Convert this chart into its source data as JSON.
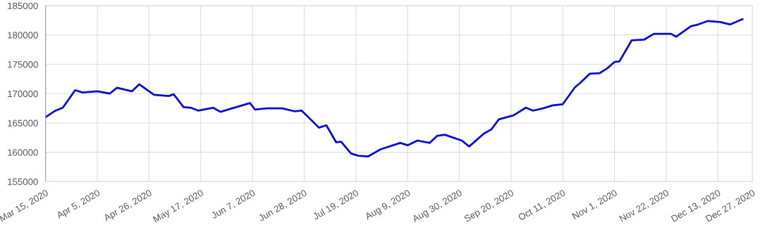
{
  "chart_data": {
    "type": "line",
    "grid": true,
    "marker": "none",
    "line_style": "solid",
    "xlim": [
      "2020-03-15",
      "2020-12-27"
    ],
    "xticks": [
      {
        "value": "2020-03-15",
        "label": "Mar 15, 2020"
      },
      {
        "value": "2020-04-05",
        "label": "Apr 5, 2020"
      },
      {
        "value": "2020-04-26",
        "label": "Apr 26, 2020"
      },
      {
        "value": "2020-05-17",
        "label": "May 17, 2020"
      },
      {
        "value": "2020-06-07",
        "label": "Jun 7, 2020"
      },
      {
        "value": "2020-06-28",
        "label": "Jun 28, 2020"
      },
      {
        "value": "2020-07-19",
        "label": "Jul 19, 2020"
      },
      {
        "value": "2020-08-09",
        "label": "Aug 9, 2020"
      },
      {
        "value": "2020-08-30",
        "label": "Aug 30, 2020"
      },
      {
        "value": "2020-09-20",
        "label": "Sep 20, 2020"
      },
      {
        "value": "2020-10-11",
        "label": "Oct 11, 2020"
      },
      {
        "value": "2020-11-01",
        "label": "Nov 1, 2020"
      },
      {
        "value": "2020-11-22",
        "label": "Nov 22, 2020"
      },
      {
        "value": "2020-12-13",
        "label": "Dec 13, 2020"
      },
      {
        "value": "2020-12-27",
        "label": "Dec 27, 2020"
      }
    ],
    "ylim": [
      155000,
      185000
    ],
    "yticks": [
      155000,
      160000,
      165000,
      170000,
      175000,
      180000,
      185000
    ],
    "x": [
      "2020-03-15",
      "2020-03-19",
      "2020-03-22",
      "2020-03-27",
      "2020-03-30",
      "2020-04-05",
      "2020-04-10",
      "2020-04-13",
      "2020-04-19",
      "2020-04-22",
      "2020-04-28",
      "2020-05-04",
      "2020-05-06",
      "2020-05-10",
      "2020-05-13",
      "2020-05-16",
      "2020-05-22",
      "2020-05-25",
      "2020-06-06",
      "2020-06-08",
      "2020-06-13",
      "2020-06-19",
      "2020-06-24",
      "2020-06-27",
      "2020-07-04",
      "2020-07-07",
      "2020-07-11",
      "2020-07-13",
      "2020-07-17",
      "2020-07-20",
      "2020-07-24",
      "2020-07-29",
      "2020-08-06",
      "2020-08-09",
      "2020-08-13",
      "2020-08-18",
      "2020-08-21",
      "2020-08-24",
      "2020-08-31",
      "2020-09-03",
      "2020-09-09",
      "2020-09-12",
      "2020-09-15",
      "2020-09-21",
      "2020-09-26",
      "2020-09-29",
      "2020-10-03",
      "2020-10-07",
      "2020-10-11",
      "2020-10-16",
      "2020-10-18",
      "2020-10-22",
      "2020-10-26",
      "2020-10-29",
      "2020-11-01",
      "2020-11-03",
      "2020-11-08",
      "2020-11-13",
      "2020-11-17",
      "2020-11-24",
      "2020-11-26",
      "2020-12-02",
      "2020-12-05",
      "2020-12-09",
      "2020-12-14",
      "2020-12-18",
      "2020-12-23"
    ],
    "series": [
      {
        "color": "#0a0acc",
        "values": [
          166000,
          167100,
          167600,
          170600,
          170200,
          170400,
          170000,
          171000,
          170400,
          171600,
          169800,
          169600,
          169900,
          167700,
          167600,
          167100,
          167600,
          166900,
          168400,
          167300,
          167500,
          167500,
          167000,
          167100,
          164200,
          164600,
          161700,
          161800,
          159800,
          159400,
          159300,
          160500,
          161600,
          161200,
          162000,
          161600,
          162800,
          163000,
          162000,
          161000,
          163200,
          163900,
          165600,
          166300,
          167600,
          167100,
          167500,
          168000,
          168200,
          171100,
          171800,
          173400,
          173500,
          174300,
          175400,
          175500,
          179100,
          179200,
          180200,
          180200,
          179700,
          181500,
          181800,
          182400,
          182200,
          181800,
          182700
        ]
      }
    ]
  }
}
